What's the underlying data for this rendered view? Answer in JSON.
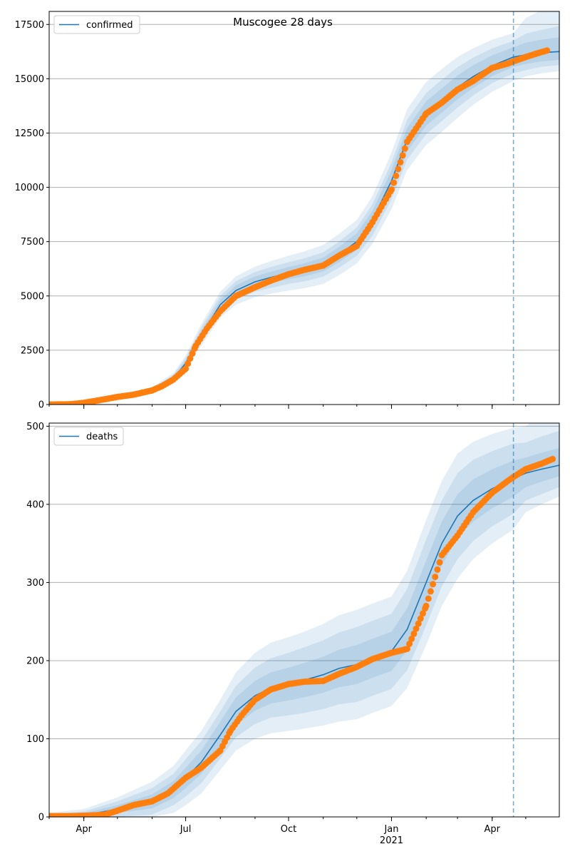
{
  "title": "Muscogee 28 days",
  "colors": {
    "forecast_line": "#1f77b4",
    "observed_points": "#ff7f0e",
    "band": "#1f77b4",
    "cutoff_line": "#1f77b4",
    "grid": "#b0b0b0"
  },
  "chart_data": [
    {
      "type": "line",
      "legend": "confirmed",
      "legend_position": "top-left",
      "grid": "horizontal",
      "x_range": [
        "2020-03-01",
        "2021-05-31"
      ],
      "x_ticks": [
        {
          "date": "2020-04-01",
          "label": "Apr"
        },
        {
          "date": "2020-07-01",
          "label": "Jul"
        },
        {
          "date": "2020-10-01",
          "label": "Oct"
        },
        {
          "date": "2021-01-01",
          "label": "Jan",
          "sublabel": "2021"
        },
        {
          "date": "2021-04-01",
          "label": "Apr"
        }
      ],
      "ylim": [
        0,
        18100
      ],
      "y_ticks": [
        0,
        2500,
        5000,
        7500,
        10000,
        12500,
        15000,
        17500
      ],
      "y_tick_labels": [
        "0",
        "2500",
        "5000",
        "7500",
        "10000",
        "12500",
        "15000",
        "17500"
      ],
      "forecast_start": "2021-04-20",
      "forecast": {
        "dates": [
          "2020-03-01",
          "2020-04-01",
          "2020-05-01",
          "2020-06-01",
          "2020-06-20",
          "2020-07-01",
          "2020-07-15",
          "2020-08-01",
          "2020-08-15",
          "2020-09-01",
          "2020-09-15",
          "2020-10-01",
          "2020-10-15",
          "2020-11-01",
          "2020-11-15",
          "2020-12-01",
          "2020-12-15",
          "2021-01-01",
          "2021-01-15",
          "2021-02-01",
          "2021-02-15",
          "2021-03-01",
          "2021-03-15",
          "2021-04-01",
          "2021-04-20",
          "2021-05-01",
          "2021-05-15",
          "2021-05-31"
        ],
        "values": [
          0,
          80,
          350,
          650,
          1200,
          1900,
          3200,
          4600,
          5250,
          5650,
          5850,
          6050,
          6200,
          6450,
          6900,
          7500,
          8500,
          10300,
          12200,
          13400,
          14000,
          14600,
          15100,
          15600,
          16000,
          16100,
          16200,
          16250
        ],
        "band_widths": [
          [
            0,
            30,
            80,
            150,
            250,
            350,
            500,
            600,
            650,
            700,
            750,
            800,
            850,
            900,
            950,
            1000,
            1100,
            1300,
            1400,
            1450,
            1450,
            1400,
            1300,
            1200,
            1100,
            1000,
            950,
            900
          ],
          [
            0,
            20,
            55,
            100,
            170,
            240,
            340,
            400,
            430,
            450,
            480,
            500,
            530,
            560,
            600,
            650,
            720,
            850,
            920,
            950,
            950,
            930,
            870,
            800,
            750,
            700,
            650,
            620
          ],
          [
            0,
            10,
            30,
            55,
            90,
            130,
            180,
            220,
            240,
            250,
            260,
            280,
            300,
            320,
            350,
            380,
            420,
            500,
            540,
            560,
            560,
            550,
            520,
            480,
            450,
            420,
            400,
            380
          ]
        ],
        "band_widths_above_extra": [
          0,
          0,
          0,
          0,
          0,
          0,
          0,
          0,
          0,
          0,
          0,
          0,
          0,
          0,
          0,
          0,
          0,
          0,
          0,
          0,
          0,
          0,
          0,
          0,
          0,
          700,
          1000,
          1400
        ]
      },
      "observed": {
        "dates": [
          "2020-03-01",
          "2020-03-20",
          "2020-04-01",
          "2020-04-15",
          "2020-05-01",
          "2020-05-15",
          "2020-06-01",
          "2020-06-10",
          "2020-06-20",
          "2020-07-01",
          "2020-07-10",
          "2020-07-20",
          "2020-08-01",
          "2020-08-15",
          "2020-09-01",
          "2020-09-15",
          "2020-10-01",
          "2020-10-15",
          "2020-11-01",
          "2020-11-15",
          "2020-12-01",
          "2020-12-15",
          "2021-01-01",
          "2021-01-15",
          "2021-02-01",
          "2021-02-15",
          "2021-03-01",
          "2021-03-15",
          "2021-04-01",
          "2021-04-15",
          "2021-04-20",
          "2021-05-01",
          "2021-05-10",
          "2021-05-20"
        ],
        "values": [
          0,
          15,
          80,
          200,
          350,
          450,
          650,
          850,
          1150,
          1650,
          2700,
          3500,
          4300,
          5000,
          5400,
          5700,
          6000,
          6200,
          6400,
          6850,
          7300,
          8400,
          9900,
          12100,
          13400,
          13900,
          14500,
          14900,
          15500,
          15700,
          15800,
          16000,
          16150,
          16300
        ]
      }
    },
    {
      "type": "line",
      "legend": "deaths",
      "legend_position": "top-left",
      "grid": "horizontal",
      "x_range": [
        "2020-03-01",
        "2021-05-31"
      ],
      "x_ticks": [
        {
          "date": "2020-04-01",
          "label": "Apr"
        },
        {
          "date": "2020-07-01",
          "label": "Jul"
        },
        {
          "date": "2020-10-01",
          "label": "Oct"
        },
        {
          "date": "2021-01-01",
          "label": "Jan",
          "sublabel": "2021"
        },
        {
          "date": "2021-04-01",
          "label": "Apr"
        }
      ],
      "ylim": [
        0,
        504
      ],
      "y_ticks": [
        0,
        100,
        200,
        300,
        400,
        500
      ],
      "y_tick_labels": [
        "0",
        "100",
        "200",
        "300",
        "400",
        "500"
      ],
      "forecast_start": "2021-04-20",
      "forecast": {
        "dates": [
          "2020-03-01",
          "2020-04-01",
          "2020-05-01",
          "2020-06-01",
          "2020-06-20",
          "2020-07-01",
          "2020-07-15",
          "2020-08-01",
          "2020-08-15",
          "2020-09-01",
          "2020-09-15",
          "2020-10-01",
          "2020-10-15",
          "2020-11-01",
          "2020-11-15",
          "2020-12-01",
          "2020-12-15",
          "2021-01-01",
          "2021-01-15",
          "2021-02-01",
          "2021-02-15",
          "2021-03-01",
          "2021-03-15",
          "2021-04-01",
          "2021-04-20",
          "2021-05-01",
          "2021-05-15",
          "2021-05-31"
        ],
        "values": [
          0,
          2,
          10,
          20,
          35,
          50,
          70,
          105,
          135,
          155,
          165,
          170,
          175,
          182,
          190,
          195,
          203,
          212,
          240,
          300,
          350,
          385,
          405,
          420,
          433,
          440,
          445,
          450
        ],
        "band_widths": [
          [
            5,
            8,
            15,
            25,
            30,
            35,
            40,
            45,
            50,
            55,
            58,
            60,
            62,
            65,
            68,
            70,
            70,
            70,
            75,
            80,
            80,
            80,
            75,
            70,
            65,
            50,
            45,
            40
          ],
          [
            3,
            5,
            10,
            17,
            20,
            24,
            27,
            30,
            33,
            36,
            38,
            40,
            42,
            44,
            46,
            48,
            48,
            48,
            52,
            55,
            55,
            55,
            52,
            48,
            45,
            35,
            32,
            28
          ],
          [
            2,
            3,
            5,
            9,
            11,
            13,
            15,
            17,
            18,
            19,
            20,
            21,
            22,
            23,
            24,
            25,
            25,
            25,
            27,
            28,
            28,
            28,
            27,
            25,
            23,
            18,
            16,
            14
          ]
        ],
        "band_widths_above_extra": [
          0,
          0,
          0,
          0,
          0,
          0,
          0,
          0,
          0,
          0,
          0,
          0,
          0,
          0,
          0,
          0,
          0,
          0,
          0,
          0,
          0,
          0,
          0,
          0,
          0,
          10,
          25,
          40
        ]
      },
      "observed": {
        "dates": [
          "2020-03-01",
          "2020-03-20",
          "2020-04-10",
          "2020-04-20",
          "2020-05-01",
          "2020-05-15",
          "2020-06-01",
          "2020-06-15",
          "2020-07-01",
          "2020-07-15",
          "2020-08-01",
          "2020-08-10",
          "2020-08-20",
          "2020-09-01",
          "2020-09-15",
          "2020-10-01",
          "2020-10-15",
          "2020-11-01",
          "2020-11-15",
          "2020-12-01",
          "2020-12-15",
          "2021-01-01",
          "2021-01-15",
          "2021-02-01",
          "2021-02-15",
          "2021-03-01",
          "2021-03-15",
          "2021-04-01",
          "2021-04-15",
          "2021-04-20",
          "2021-05-01",
          "2021-05-15",
          "2021-05-25"
        ],
        "values": [
          1,
          1,
          2,
          3,
          8,
          15,
          20,
          30,
          50,
          63,
          85,
          110,
          130,
          150,
          163,
          170,
          173,
          174,
          183,
          192,
          202,
          210,
          215,
          270,
          335,
          360,
          390,
          415,
          430,
          435,
          445,
          452,
          458
        ]
      }
    }
  ]
}
